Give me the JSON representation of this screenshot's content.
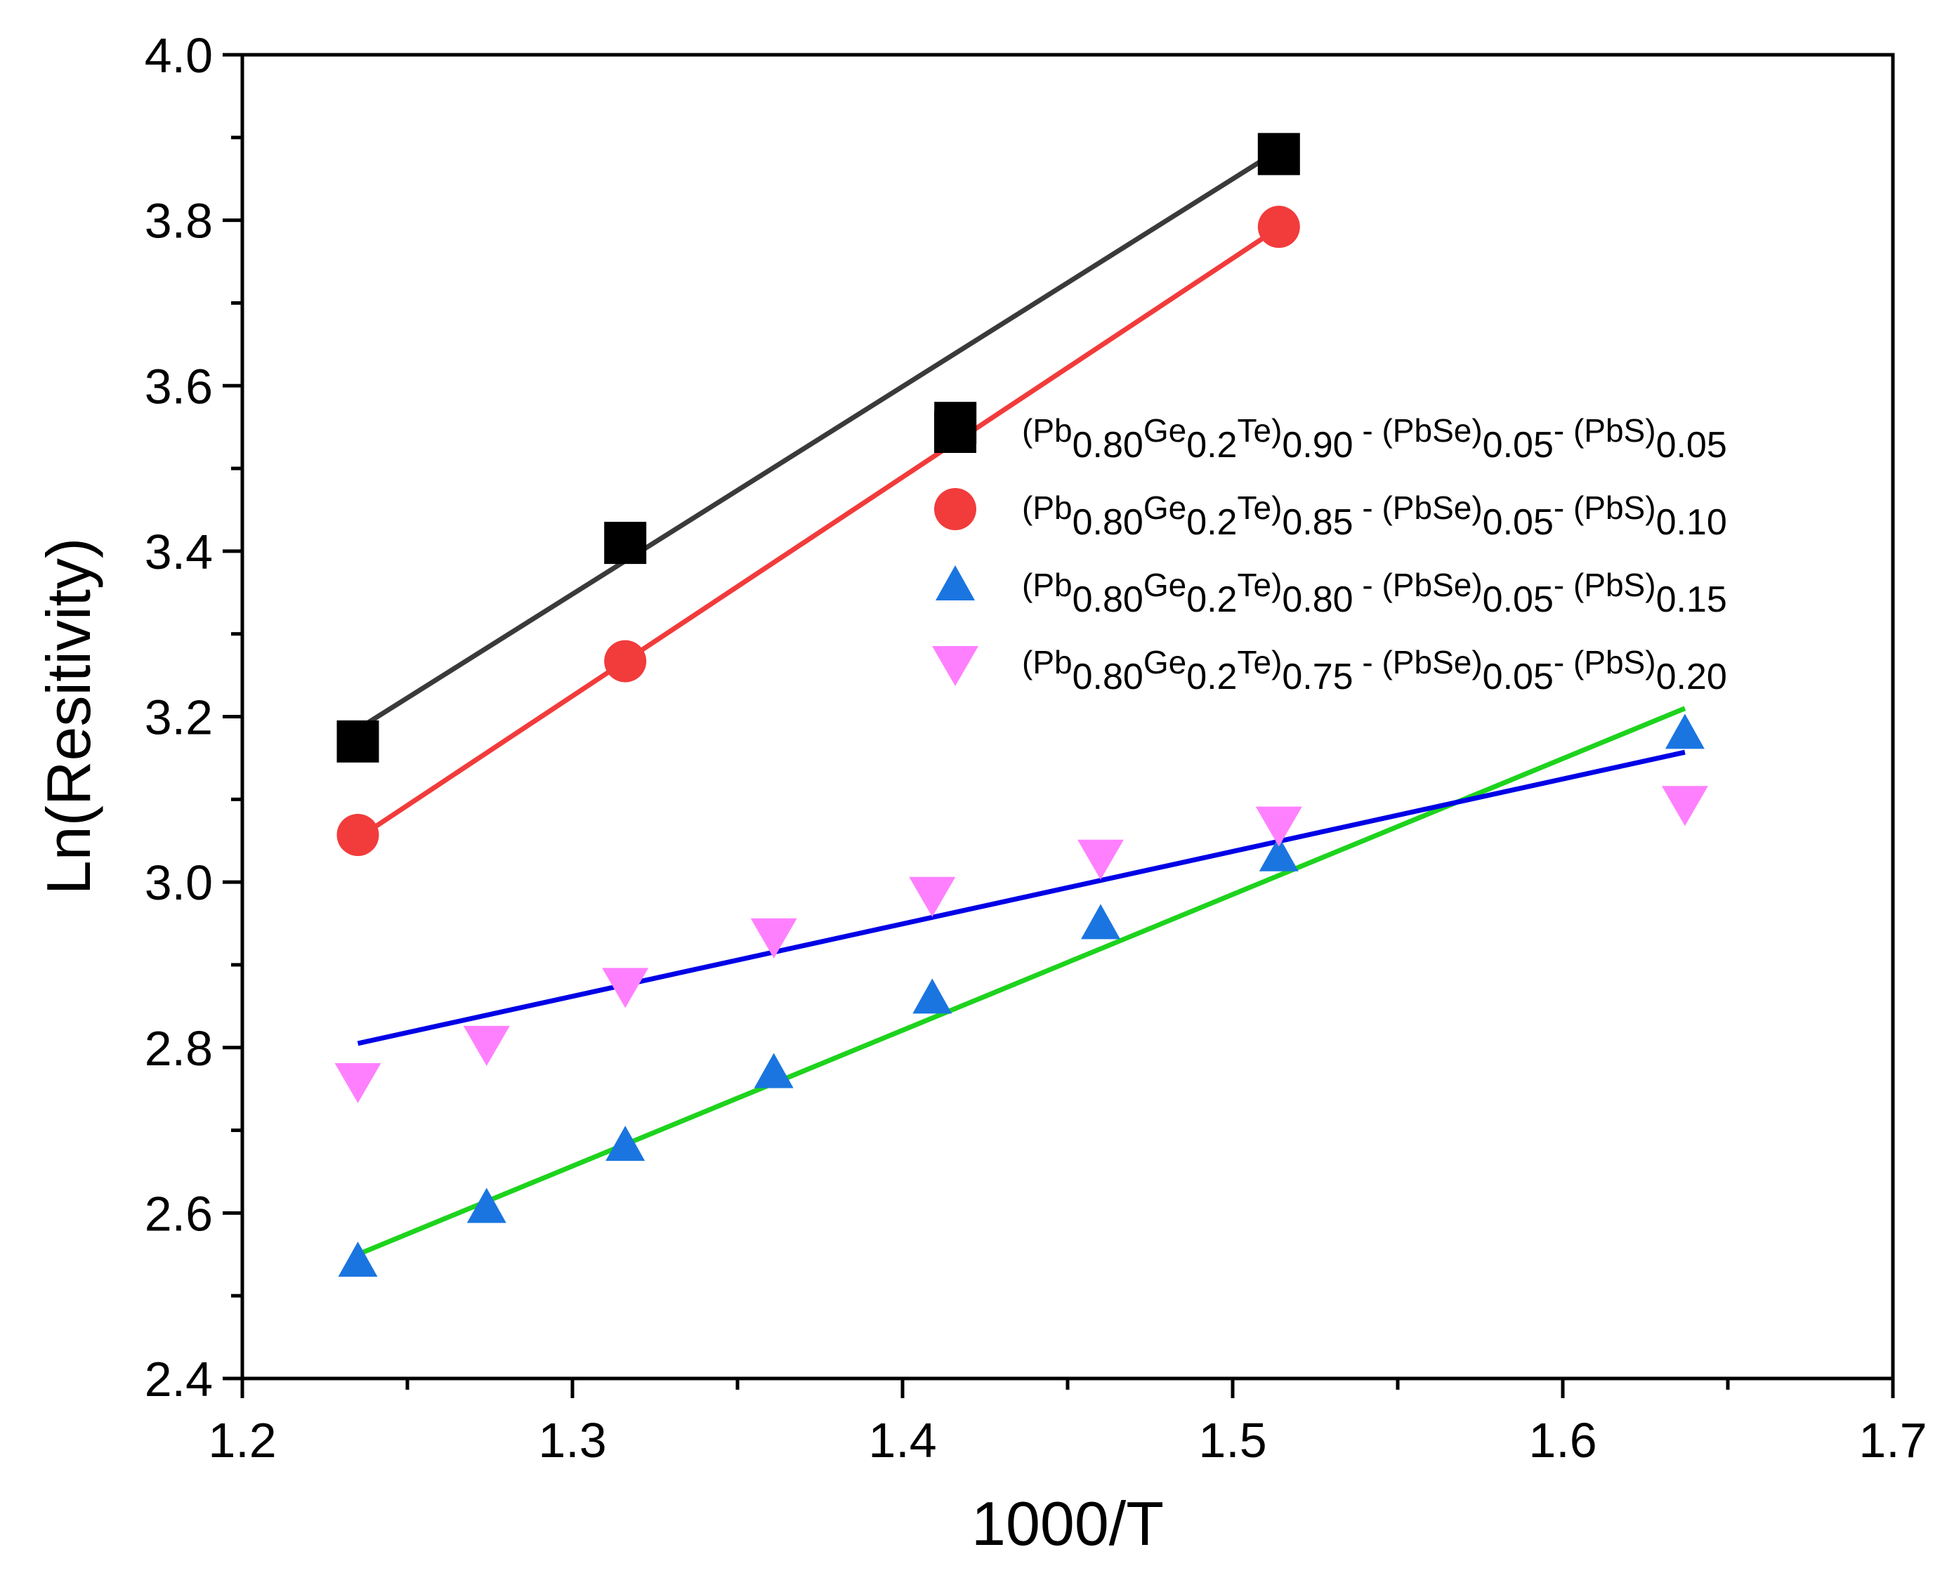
{
  "chart_data": {
    "type": "scatter",
    "title": "",
    "xlabel": "1000/T",
    "ylabel": "Ln(Resitivity)",
    "xlim": [
      1.2,
      1.7
    ],
    "ylim": [
      2.4,
      4.0
    ],
    "xticks": [
      "1.2",
      "1.3",
      "1.4",
      "1.5",
      "1.6",
      "1.7"
    ],
    "yticks": [
      "2.4",
      "2.6",
      "2.8",
      "3.0",
      "3.2",
      "3.4",
      "3.6",
      "3.8",
      "4.0"
    ],
    "legend_position": "center-right",
    "series": [
      {
        "name": "(Pb0.80Ge0.2Te)0.90 - (PbSe)0.05- (PbS)0.05",
        "legend_parts": [
          "(Pb",
          "0.80",
          "Ge",
          "0.2",
          "Te)",
          "0.90",
          " - (PbSe)",
          "0.05",
          "- (PbS)",
          "0.05"
        ],
        "marker": "square",
        "color": "#000000",
        "fit_color": "#3a3a3a",
        "x": [
          1.235,
          1.316,
          1.416,
          1.514
        ],
        "y": [
          3.17,
          3.41,
          3.555,
          3.88
        ],
        "fit": [
          [
            1.235,
            3.185
          ],
          [
            1.514,
            3.885
          ]
        ]
      },
      {
        "name": "(Pb0.80Ge0.2Te)0.85 - (PbSe)0.05- (PbS)0.10",
        "legend_parts": [
          "(Pb",
          "0.80",
          "Ge",
          "0.2",
          "Te)",
          "0.85",
          " - (PbSe)",
          "0.05",
          "- (PbS)",
          "0.10"
        ],
        "marker": "circle",
        "color": "#f23b3b",
        "fit_color": "#f23b3b",
        "x": [
          1.235,
          1.316,
          1.514
        ],
        "y": [
          3.057,
          3.267,
          3.792
        ],
        "fit": [
          [
            1.235,
            3.053
          ],
          [
            1.514,
            3.791
          ]
        ]
      },
      {
        "name": "(Pb0.80Ge0.2Te)0.80 - (PbSe)0.05- (PbS)0.15",
        "legend_parts": [
          "(Pb",
          "0.80",
          "Ge",
          "0.2",
          "Te)",
          "0.80",
          " - (PbSe)",
          "0.05",
          "- (PbS)",
          "0.15"
        ],
        "marker": "triangle-up",
        "color": "#1a75e0",
        "fit_color": "#1dd31d",
        "x": [
          1.235,
          1.274,
          1.316,
          1.361,
          1.409,
          1.46,
          1.514,
          1.637
        ],
        "y": [
          2.54,
          2.605,
          2.68,
          2.768,
          2.858,
          2.948,
          3.03,
          3.178
        ],
        "fit": [
          [
            1.235,
            2.55
          ],
          [
            1.637,
            3.21
          ]
        ]
      },
      {
        "name": "(Pb0.80Ge0.2Te)0.75 - (PbSe)0.05- (PbS)0.20",
        "legend_parts": [
          "(Pb",
          "0.80",
          "Ge",
          "0.2",
          "Te)",
          "0.75",
          " - (PbSe)",
          "0.05",
          "- (PbS)",
          "0.20"
        ],
        "marker": "triangle-down",
        "color": "#ff80ff",
        "fit_color": "#0000e6",
        "x": [
          1.235,
          1.274,
          1.316,
          1.361,
          1.409,
          1.46,
          1.514,
          1.637
        ],
        "y": [
          2.76,
          2.805,
          2.875,
          2.935,
          2.985,
          3.03,
          3.07,
          3.095
        ],
        "fit": [
          [
            1.235,
            2.805
          ],
          [
            1.637,
            3.157
          ]
        ]
      }
    ]
  }
}
